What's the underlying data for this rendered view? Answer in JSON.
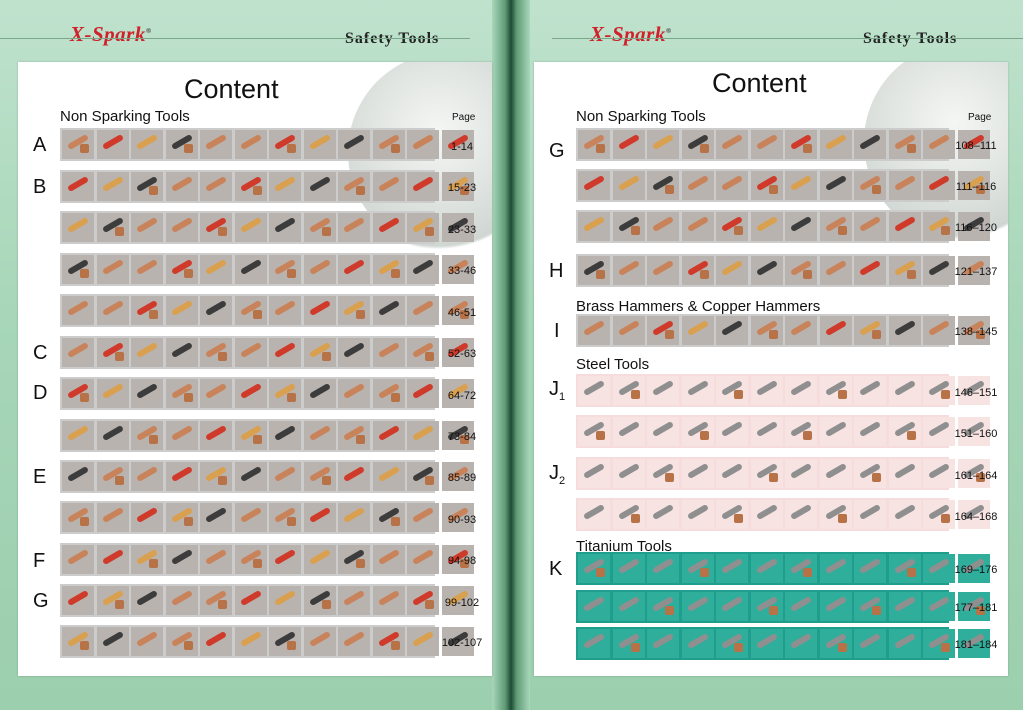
{
  "left": {
    "logo": "X-Spark",
    "header_title": "Safety  Tools",
    "content_title": "Content",
    "section": "Non Sparking Tools",
    "page_label": "Page",
    "letters": [
      "A",
      "B",
      "C",
      "D",
      "E",
      "F",
      "G"
    ],
    "ranges": [
      "1-14",
      "15-23",
      "23-33",
      "33-46",
      "46-51",
      "52-63",
      "64-72",
      "73-84",
      "85-89",
      "90-93",
      "94-98",
      "99-102",
      "102-107"
    ]
  },
  "right": {
    "logo": "X-Spark",
    "header_title": "Safety  Tools",
    "content_title": "Content",
    "section_nonspark": "Non Sparking Tools",
    "section_hammers": "Brass Hammers & Copper Hammers",
    "section_steel": "Steel Tools",
    "section_titanium": "Titanium Tools",
    "page_label": "Page",
    "letters": {
      "g": "G",
      "h": "H",
      "i": "I",
      "j1": "J",
      "j1_sub": "1",
      "j2": "J",
      "j2_sub": "2",
      "k": "K"
    },
    "ranges": [
      "108–111",
      "111–116",
      "116–120",
      "121–137",
      "138–145",
      "146–151",
      "151–160",
      "161–164",
      "164–168",
      "169–176",
      "177–181",
      "181–184"
    ]
  },
  "colors": {
    "logo_red": "#d0202a",
    "green_bg": "#a7d6b8",
    "strip_grey": "#cccccc",
    "strip_pink": "#f6dcdc",
    "strip_teal": "#1f9e8d"
  }
}
